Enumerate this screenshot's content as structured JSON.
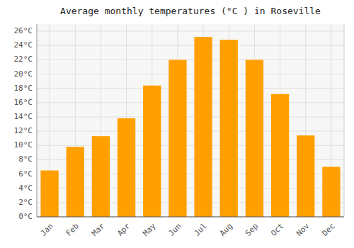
{
  "chart_data": {
    "type": "bar",
    "title": "Average monthly temperatures (°C ) in Roseville",
    "categories": [
      "Jan",
      "Feb",
      "Mar",
      "Apr",
      "May",
      "Jun",
      "Jul",
      "Aug",
      "Sep",
      "Oct",
      "Nov",
      "Dec"
    ],
    "values": [
      6.5,
      9.8,
      11.3,
      13.8,
      18.4,
      22.0,
      25.2,
      24.8,
      22.0,
      17.2,
      11.4,
      7.0
    ],
    "color": "#FFA000",
    "ylim": [
      0,
      27
    ],
    "yticks": [
      {
        "value": 0,
        "label": "0°C"
      },
      {
        "value": 2,
        "label": "2°C"
      },
      {
        "value": 4,
        "label": "4°C"
      },
      {
        "value": 6,
        "label": "6°C"
      },
      {
        "value": 8,
        "label": "8°C"
      },
      {
        "value": 10,
        "label": "10°C"
      },
      {
        "value": 12,
        "label": "12°C"
      },
      {
        "value": 14,
        "label": "14°C"
      },
      {
        "value": 16,
        "label": "16°C"
      },
      {
        "value": 18,
        "label": "18°C"
      },
      {
        "value": 20,
        "label": "20°C"
      },
      {
        "value": 22,
        "label": "22°C"
      },
      {
        "value": 24,
        "label": "24°C"
      },
      {
        "value": 26,
        "label": "26°C"
      }
    ],
    "grid": true
  }
}
